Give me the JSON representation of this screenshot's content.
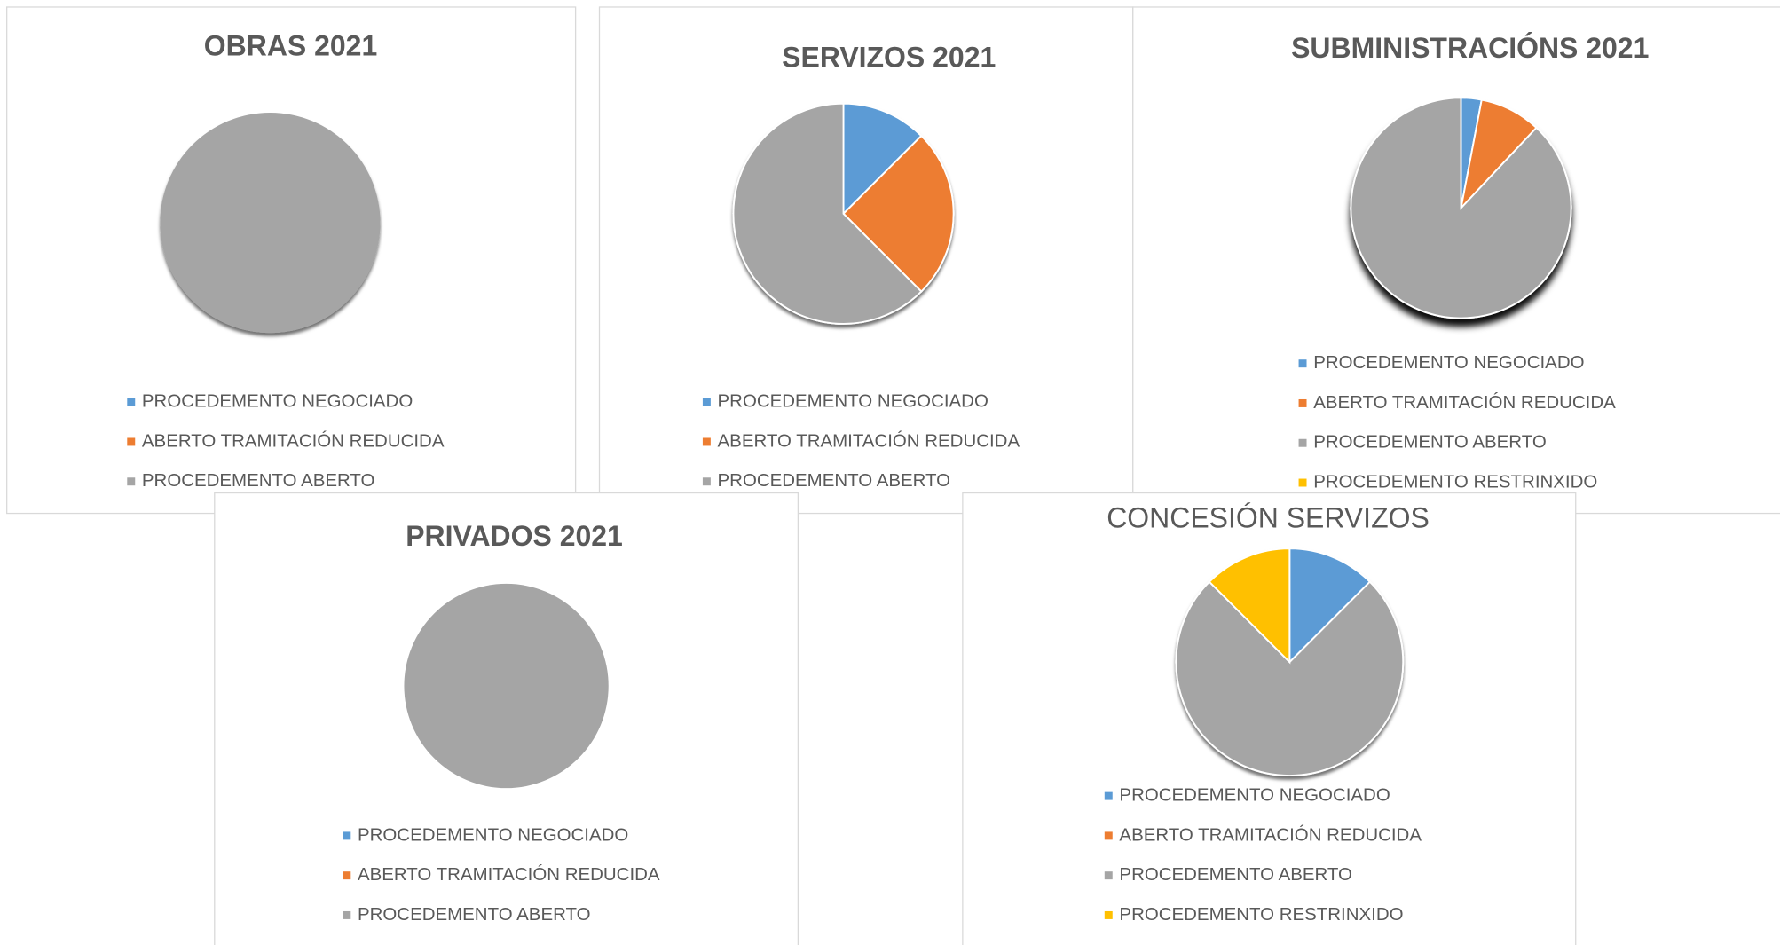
{
  "chart_data": [
    {
      "type": "pie",
      "title": "OBRAS 2021",
      "categories": [
        "PROCEDEMENTO NEGOCIADO",
        "ABERTO TRAMITACIÓN REDUCIDA",
        "PROCEDEMENTO ABERTO"
      ],
      "values": [
        0,
        0,
        100
      ],
      "colors": [
        "#5b9bd5",
        "#ed7d31",
        "#a5a5a5"
      ],
      "legend": "bottom"
    },
    {
      "type": "pie",
      "title": "SERVIZOS 2021",
      "categories": [
        "PROCEDEMENTO NEGOCIADO",
        "ABERTO TRAMITACIÓN REDUCIDA",
        "PROCEDEMENTO ABERTO"
      ],
      "values": [
        12.5,
        25,
        62.5
      ],
      "colors": [
        "#5b9bd5",
        "#ed7d31",
        "#a5a5a5"
      ],
      "legend": "bottom"
    },
    {
      "type": "pie",
      "title": "SUBMINISTRACIÓNS 2021",
      "categories": [
        "PROCEDEMENTO NEGOCIADO",
        "ABERTO TRAMITACIÓN REDUCIDA",
        "PROCEDEMENTO ABERTO",
        "PROCEDEMENTO RESTRINXIDO"
      ],
      "values": [
        3,
        9,
        88,
        0
      ],
      "colors": [
        "#5b9bd5",
        "#ed7d31",
        "#a5a5a5",
        "#ffc000"
      ],
      "legend": "bottom"
    },
    {
      "type": "pie",
      "title": "PRIVADOS 2021",
      "categories": [
        "PROCEDEMENTO NEGOCIADO",
        "ABERTO TRAMITACIÓN REDUCIDA",
        "PROCEDEMENTO ABERTO"
      ],
      "values": [
        0,
        0,
        100
      ],
      "colors": [
        "#5b9bd5",
        "#ed7d31",
        "#a5a5a5"
      ],
      "legend": "bottom"
    },
    {
      "type": "pie",
      "title": "CONCESIÓN SERVIZOS",
      "categories": [
        "PROCEDEMENTO NEGOCIADO",
        "ABERTO TRAMITACIÓN REDUCIDA",
        "PROCEDEMENTO ABERTO",
        "PROCEDEMENTO RESTRINXIDO"
      ],
      "values": [
        12.5,
        0,
        75,
        12.5
      ],
      "colors": [
        "#5b9bd5",
        "#ed7d31",
        "#a5a5a5",
        "#ffc000"
      ],
      "legend": "bottom"
    }
  ]
}
